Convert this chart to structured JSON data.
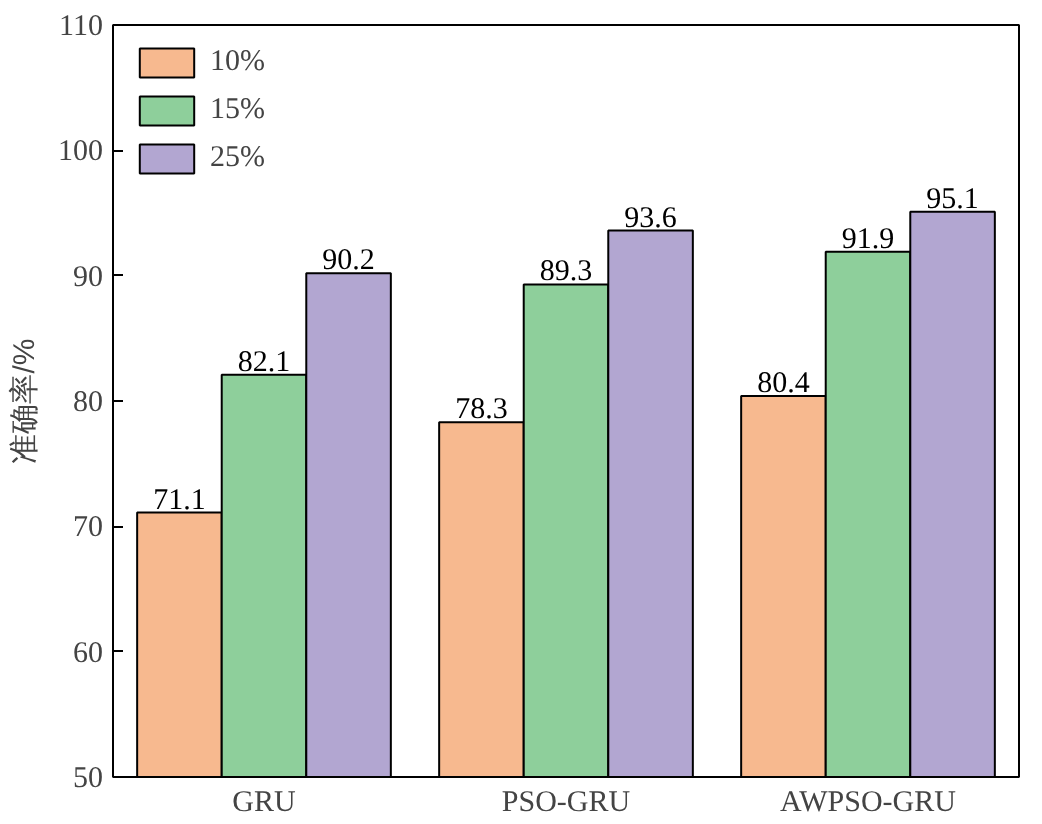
{
  "chart_data": {
    "type": "bar",
    "ylabel": "准确率/%",
    "categories": [
      "GRU",
      "PSO-GRU",
      "AWPSO-GRU"
    ],
    "series": [
      {
        "name": "10%",
        "color": "#f7b98f",
        "values": [
          71.1,
          78.3,
          80.4
        ]
      },
      {
        "name": "15%",
        "color": "#8ecf9b",
        "values": [
          82.1,
          89.3,
          91.9
        ]
      },
      {
        "name": "25%",
        "color": "#b2a6d1",
        "values": [
          90.2,
          93.6,
          95.1
        ]
      }
    ],
    "ylim": [
      50,
      110
    ],
    "yticks": [
      50,
      60,
      70,
      80,
      90,
      100,
      110
    ],
    "data_labels": true,
    "legend": "top left",
    "grid": false
  }
}
